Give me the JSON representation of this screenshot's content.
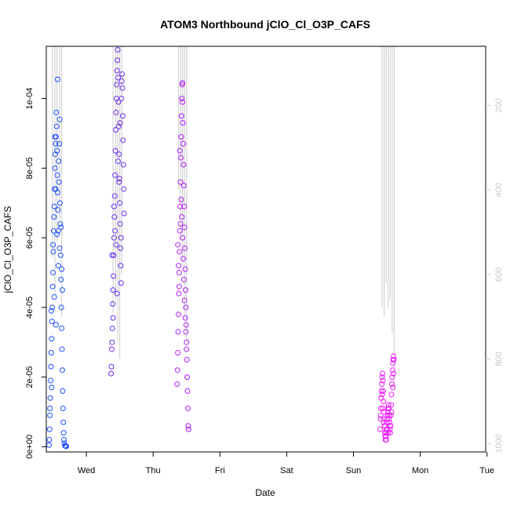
{
  "chart_data": {
    "type": "scatter",
    "title": "ATOM3 Northbound jClO_Cl_O3P_CAFS",
    "xlabel": "Date",
    "ylabel": "jClO_Cl_O3P_CAFS",
    "x_ticks": [
      "Wed",
      "Thu",
      "Fri",
      "Sat",
      "Sun",
      "Mon",
      "Tue"
    ],
    "y_ticks": [
      "0e+00",
      "2e-05",
      "4e-05",
      "6e-05",
      "8e-05",
      "1e-04"
    ],
    "y_ticks_values": [
      0,
      2e-05,
      4e-05,
      6e-05,
      8e-05,
      0.0001
    ],
    "y2_ticks": [
      "200",
      "400",
      "600",
      "800",
      "1000"
    ],
    "y2_ticks_values": [
      200,
      400,
      600,
      800,
      1000
    ],
    "ylim": [
      -1.5e-06,
      0.000115
    ],
    "y2lim": [
      1020,
      60
    ],
    "xlim_days": [
      -0.6,
      5.98
    ],
    "grid": false,
    "legend": "none",
    "colors": {
      "pressure": "#d3d3d3",
      "series1": "#1e50ff",
      "series2": "#6b2ff0",
      "series3": "#b41eff",
      "series4": "#f01eff"
    },
    "series": [
      {
        "day_offset": 0.0,
        "color": "#1e50ff",
        "points": [
          [
            -0.56,
            5e-07
          ],
          [
            -0.555,
            2e-06
          ],
          [
            -0.55,
            5e-06
          ],
          [
            -0.545,
            9e-06
          ],
          [
            -0.54,
            1.4e-05
          ],
          [
            -0.535,
            1.9e-05
          ],
          [
            -0.53,
            2.3e-05
          ],
          [
            -0.525,
            2.7e-05
          ],
          [
            -0.52,
            3.1e-05
          ],
          [
            -0.515,
            3.6e-05
          ],
          [
            -0.51,
            4e-05
          ],
          [
            -0.505,
            4.6e-05
          ],
          [
            -0.5,
            5e-05
          ],
          [
            -0.495,
            5.6e-05
          ],
          [
            -0.49,
            6.2e-05
          ],
          [
            -0.485,
            6.6e-05
          ],
          [
            -0.48,
            6.9e-05
          ],
          [
            -0.475,
            7.4e-05
          ],
          [
            -0.47,
            8e-05
          ],
          [
            -0.465,
            8.4e-05
          ],
          [
            -0.46,
            8.7e-05
          ],
          [
            -0.455,
            8.9e-05
          ],
          [
            -0.45,
            9.6e-05
          ],
          [
            -0.445,
            9.2e-05
          ],
          [
            -0.44,
            8.5e-05
          ],
          [
            -0.435,
            7.8e-05
          ],
          [
            -0.43,
            7.3e-05
          ],
          [
            -0.425,
            6.8e-05
          ],
          [
            -0.42,
            6.2e-05
          ],
          [
            -0.415,
            8.2e-05
          ],
          [
            -0.41,
            7.6e-05
          ],
          [
            -0.405,
            8.7e-05
          ],
          [
            -0.4,
            9.4e-05
          ],
          [
            -0.395,
            7e-05
          ],
          [
            -0.39,
            6.4e-05
          ],
          [
            -0.385,
            5.5e-05
          ],
          [
            -0.38,
            4.8e-05
          ],
          [
            -0.375,
            4e-05
          ],
          [
            -0.37,
            3.4e-05
          ],
          [
            -0.365,
            2.8e-05
          ],
          [
            -0.36,
            2.2e-05
          ],
          [
            -0.355,
            1.6e-05
          ],
          [
            -0.35,
            1.1e-05
          ],
          [
            -0.345,
            7e-06
          ],
          [
            -0.34,
            4e-06
          ],
          [
            -0.335,
            2e-06
          ],
          [
            -0.33,
            1e-06
          ],
          [
            -0.32,
            3e-07
          ],
          [
            -0.31,
            2e-07
          ],
          [
            -0.3,
            1e-07
          ],
          [
            -0.525,
            3.9e-05
          ],
          [
            -0.5,
            5.8e-05
          ],
          [
            -0.48,
            4.3e-05
          ],
          [
            -0.46,
            7.4e-05
          ],
          [
            -0.44,
            6.1e-05
          ],
          [
            -0.42,
            5.2e-05
          ],
          [
            -0.4,
            5.7e-05
          ],
          [
            -0.38,
            6.3e-05
          ],
          [
            -0.37,
            5.1e-05
          ],
          [
            -0.36,
            4.5e-05
          ],
          [
            -0.43,
            0.0001055
          ],
          [
            -0.455,
            3.5e-05
          ],
          [
            -0.52,
            1.7e-05
          ],
          [
            -0.545,
            1.1e-05
          ],
          [
            -0.47,
            8.9e-05
          ]
        ],
        "pressure_lines": [
          [
            -0.51,
            60,
            560
          ],
          [
            -0.47,
            60,
            650
          ],
          [
            -0.44,
            60,
            520
          ],
          [
            -0.4,
            60,
            470
          ],
          [
            -0.37,
            60,
            700
          ]
        ]
      },
      {
        "day_offset": 0.0,
        "color": "#6b2ff0",
        "points": [
          [
            0.37,
            2.1e-05
          ],
          [
            0.375,
            2.3e-05
          ],
          [
            0.38,
            2.8e-05
          ],
          [
            0.385,
            3e-05
          ],
          [
            0.39,
            3.4e-05
          ],
          [
            0.395,
            4.1e-05
          ],
          [
            0.4,
            4.5e-05
          ],
          [
            0.405,
            4.9e-05
          ],
          [
            0.41,
            5.5e-05
          ],
          [
            0.415,
            6e-05
          ],
          [
            0.42,
            6.6e-05
          ],
          [
            0.425,
            7.2e-05
          ],
          [
            0.43,
            7.8e-05
          ],
          [
            0.435,
            8.5e-05
          ],
          [
            0.44,
            9.1e-05
          ],
          [
            0.445,
            9.6e-05
          ],
          [
            0.45,
            0.0001
          ],
          [
            0.455,
            0.000104
          ],
          [
            0.46,
            0.000108
          ],
          [
            0.465,
            0.000111
          ],
          [
            0.47,
            0.000114
          ],
          [
            0.475,
            0.000106
          ],
          [
            0.48,
            9.9e-05
          ],
          [
            0.485,
            9.2e-05
          ],
          [
            0.49,
            8.4e-05
          ],
          [
            0.495,
            7.7e-05
          ],
          [
            0.5,
            7e-05
          ],
          [
            0.505,
            6.4e-05
          ],
          [
            0.51,
            5.7e-05
          ],
          [
            0.515,
            5.2e-05
          ],
          [
            0.52,
            4.7e-05
          ],
          [
            0.525,
            0.0001
          ],
          [
            0.53,
            0.000105
          ],
          [
            0.535,
            0.000107
          ],
          [
            0.54,
            0.000103
          ],
          [
            0.545,
            9.5e-05
          ],
          [
            0.55,
            8.8e-05
          ],
          [
            0.555,
            8.1e-05
          ],
          [
            0.56,
            7.4e-05
          ],
          [
            0.565,
            6.7e-05
          ],
          [
            0.385,
            5.5e-05
          ],
          [
            0.4,
            3.7e-05
          ],
          [
            0.415,
            6.9e-05
          ],
          [
            0.43,
            6.2e-05
          ],
          [
            0.445,
            5.8e-05
          ],
          [
            0.46,
            4.4e-05
          ],
          [
            0.475,
            8.2e-05
          ],
          [
            0.49,
            7.6e-05
          ],
          [
            0.505,
            9.3e-05
          ],
          [
            0.52,
            6e-05
          ]
        ],
        "pressure_lines": [
          [
            0.4,
            60,
            690
          ],
          [
            0.44,
            60,
            660
          ],
          [
            0.47,
            60,
            760
          ],
          [
            0.5,
            60,
            800
          ],
          [
            0.53,
            60,
            600
          ]
        ]
      },
      {
        "day_offset": 0.0,
        "color": "#b41eff",
        "points": [
          [
            1.36,
            1.8e-05
          ],
          [
            1.365,
            2.2e-05
          ],
          [
            1.37,
            2.7e-05
          ],
          [
            1.375,
            3.3e-05
          ],
          [
            1.38,
            3.8e-05
          ],
          [
            1.385,
            4.4e-05
          ],
          [
            1.39,
            5e-05
          ],
          [
            1.395,
            5.6e-05
          ],
          [
            1.4,
            6.2e-05
          ],
          [
            1.405,
            6.9e-05
          ],
          [
            1.41,
            7.6e-05
          ],
          [
            1.415,
            8.3e-05
          ],
          [
            1.42,
            8.9e-05
          ],
          [
            1.425,
            9.5e-05
          ],
          [
            1.43,
            0.0001
          ],
          [
            1.435,
            0.000104
          ],
          [
            1.44,
            9.9e-05
          ],
          [
            1.445,
            9.3e-05
          ],
          [
            1.45,
            8.7e-05
          ],
          [
            1.455,
            8.1e-05
          ],
          [
            1.46,
            7.5e-05
          ],
          [
            1.465,
            6.9e-05
          ],
          [
            1.47,
            6.3e-05
          ],
          [
            1.475,
            5.7e-05
          ],
          [
            1.48,
            5.1e-05
          ],
          [
            1.485,
            4.5e-05
          ],
          [
            1.49,
            4e-05
          ],
          [
            1.495,
            3.5e-05
          ],
          [
            1.5,
            3e-05
          ],
          [
            1.505,
            2.5e-05
          ],
          [
            1.51,
            2e-05
          ],
          [
            1.515,
            1.6e-05
          ],
          [
            1.52,
            1.1e-05
          ],
          [
            1.525,
            6e-06
          ],
          [
            1.53,
            5e-06
          ],
          [
            1.37,
            5.8e-05
          ],
          [
            1.38,
            5.2e-05
          ],
          [
            1.39,
            4.6e-05
          ],
          [
            1.4,
            8.5e-05
          ],
          [
            1.41,
            6.4e-05
          ],
          [
            1.42,
            7.1e-05
          ],
          [
            1.43,
            6.6e-05
          ],
          [
            1.44,
            6e-05
          ],
          [
            1.45,
            5.4e-05
          ],
          [
            1.46,
            4.8e-05
          ],
          [
            1.47,
            4.2e-05
          ],
          [
            1.48,
            3.7e-05
          ],
          [
            1.49,
            3.3e-05
          ],
          [
            1.5,
            2.8e-05
          ],
          [
            1.44,
            0.0001045
          ]
        ],
        "pressure_lines": [
          [
            1.38,
            60,
            400
          ],
          [
            1.41,
            60,
            520
          ],
          [
            1.44,
            60,
            580
          ],
          [
            1.47,
            60,
            700
          ],
          [
            1.5,
            60,
            760
          ]
        ]
      },
      {
        "day_offset": 0.0,
        "color": "#f01eff",
        "points": [
          [
            4.4,
            5e-06
          ],
          [
            4.405,
            8e-06
          ],
          [
            4.41,
            1.1e-05
          ],
          [
            4.415,
            1.4e-05
          ],
          [
            4.42,
            1.6e-05
          ],
          [
            4.425,
            1.8e-05
          ],
          [
            4.43,
            2e-05
          ],
          [
            4.435,
            2.1e-05
          ],
          [
            4.44,
            1.9e-05
          ],
          [
            4.445,
            1.6e-05
          ],
          [
            4.45,
            1.3e-05
          ],
          [
            4.455,
            1e-05
          ],
          [
            4.46,
            8e-06
          ],
          [
            4.465,
            6e-06
          ],
          [
            4.47,
            4e-06
          ],
          [
            4.475,
            3e-06
          ],
          [
            4.48,
            2e-06
          ],
          [
            4.485,
            3e-06
          ],
          [
            4.49,
            4e-06
          ],
          [
            4.495,
            5e-06
          ],
          [
            4.5,
            7e-06
          ],
          [
            4.505,
            8e-06
          ],
          [
            4.51,
            9e-06
          ],
          [
            4.515,
            1e-05
          ],
          [
            4.52,
            1.1e-05
          ],
          [
            4.525,
            1.2e-05
          ],
          [
            4.53,
            1.1e-05
          ],
          [
            4.535,
            9e-06
          ],
          [
            4.54,
            7e-06
          ],
          [
            4.545,
            5e-06
          ],
          [
            4.55,
            4e-06
          ],
          [
            4.555,
            6e-06
          ],
          [
            4.56,
            9e-06
          ],
          [
            4.565,
            1.2e-05
          ],
          [
            4.57,
            1.5e-05
          ],
          [
            4.575,
            1.8e-05
          ],
          [
            4.58,
            2e-05
          ],
          [
            4.585,
            2.2e-05
          ],
          [
            4.59,
            2.4e-05
          ],
          [
            4.595,
            2.5e-05
          ],
          [
            4.6,
            2.6e-05
          ],
          [
            4.605,
            2.5e-05
          ],
          [
            4.41,
            9e-06
          ],
          [
            4.43,
            1.5e-05
          ],
          [
            4.45,
            7e-06
          ],
          [
            4.47,
            6e-06
          ],
          [
            4.49,
            2e-06
          ],
          [
            4.51,
            5e-06
          ],
          [
            4.53,
            8e-06
          ],
          [
            4.55,
            6e-06
          ],
          [
            4.57,
            1e-05
          ],
          [
            4.59,
            1.7e-05
          ],
          [
            4.6,
            2.1e-05
          ],
          [
            4.44,
            1.1e-05
          ],
          [
            4.52,
            4e-06
          ]
        ],
        "pressure_lines": [
          [
            4.43,
            60,
            680
          ],
          [
            4.46,
            60,
            700
          ],
          [
            4.49,
            60,
            620
          ],
          [
            4.52,
            60,
            680
          ],
          [
            4.55,
            60,
            660
          ],
          [
            4.58,
            60,
            740
          ],
          [
            4.61,
            60,
            870
          ]
        ]
      }
    ]
  }
}
